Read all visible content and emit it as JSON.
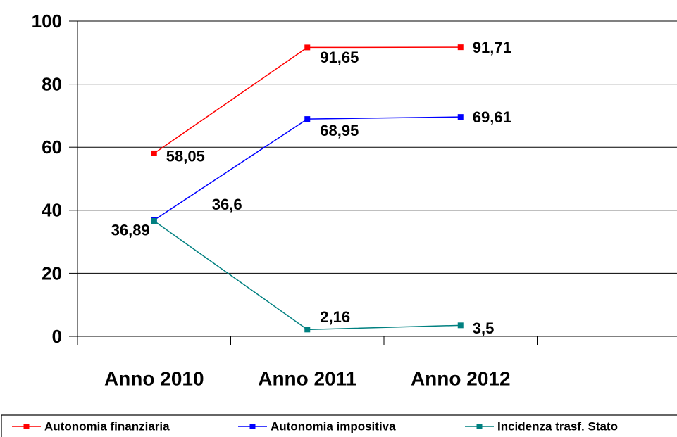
{
  "chart_data": {
    "type": "line",
    "categories": [
      "Anno 2010",
      "Anno 2011",
      "Anno 2012",
      null
    ],
    "series": [
      {
        "name": "Autonomia finanziaria",
        "color": "#ff0000",
        "values": [
          58.05,
          91.65,
          91.71,
          null
        ],
        "value_labels": [
          "58,05",
          "91,65",
          "91,71",
          null
        ]
      },
      {
        "name": "Autonomia impositiva",
        "color": "#0000ff",
        "values": [
          36.89,
          68.95,
          69.61,
          null
        ],
        "value_labels": [
          "36,89",
          "68,95",
          "69,61",
          null
        ]
      },
      {
        "name": "Incidenza trasf. Stato",
        "color": "#008080",
        "values": [
          36.6,
          2.16,
          3.5,
          null
        ],
        "value_labels": [
          "36,6",
          "2,16",
          "3,5",
          null
        ]
      }
    ],
    "ylim": [
      0,
      100
    ],
    "yticks": [
      0,
      20,
      40,
      60,
      80,
      100
    ],
    "grid": true
  }
}
